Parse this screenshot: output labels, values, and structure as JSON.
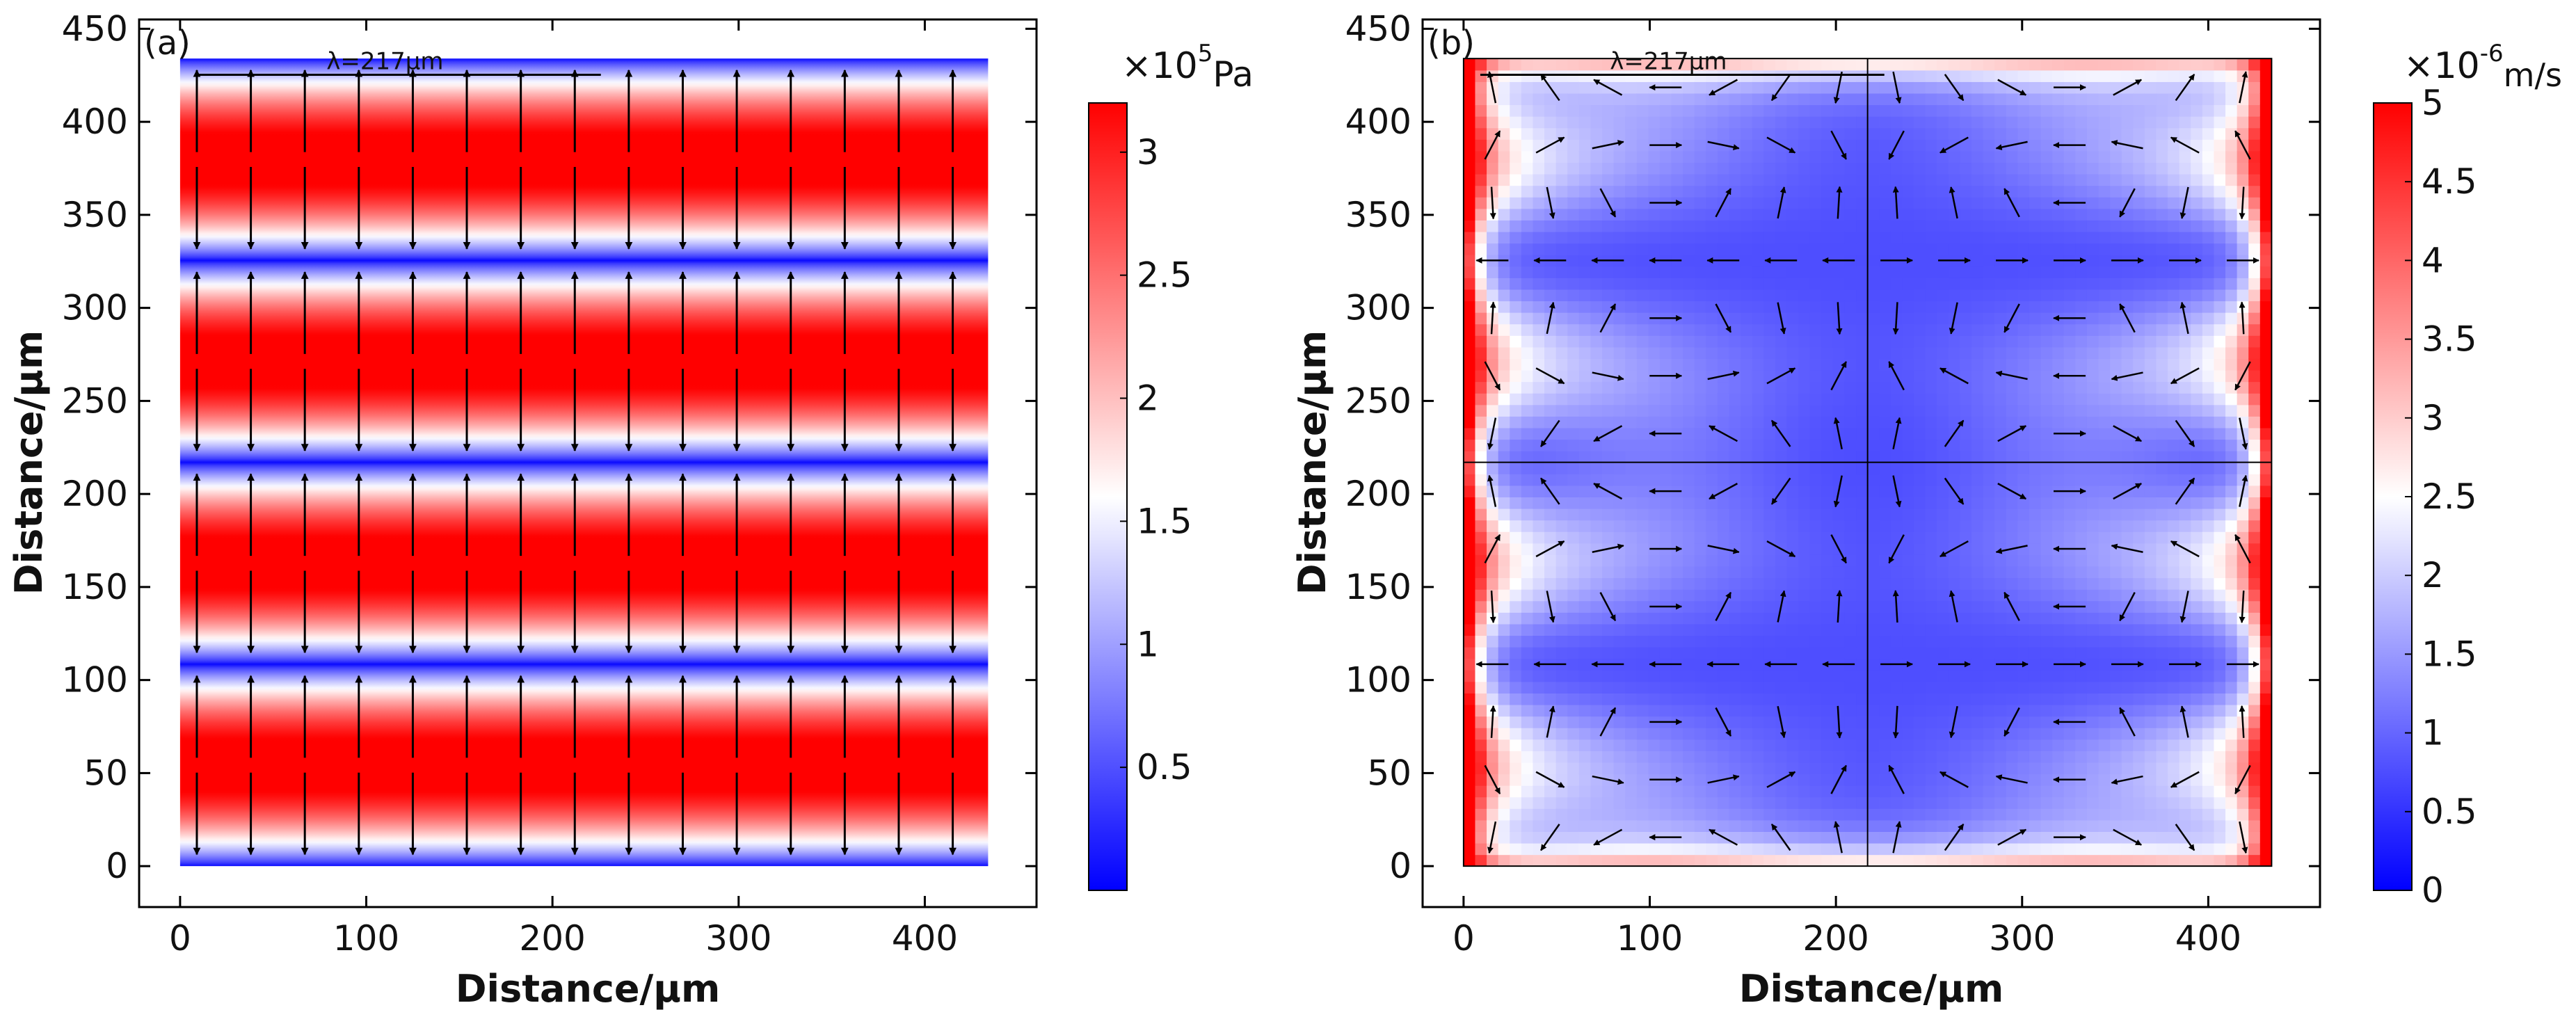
{
  "chart_data": [
    {
      "type": "heatmap",
      "panel_label": "(a)",
      "xlabel": "Distance/μm",
      "ylabel": "Distance/μm",
      "xlim": [
        -22,
        460
      ],
      "ylim": [
        -22,
        455
      ],
      "xticks": [
        0,
        100,
        200,
        300,
        400
      ],
      "yticks": [
        0,
        50,
        100,
        150,
        200,
        250,
        300,
        350,
        400,
        450
      ],
      "x_ticklabels": [
        "0",
        "100",
        "200",
        "300",
        "400"
      ],
      "y_ticklabels": [
        "0",
        "50",
        "100",
        "150",
        "200",
        "250",
        "300",
        "350",
        "400",
        "450"
      ],
      "domain": {
        "x": [
          0,
          434
        ],
        "y": [
          0,
          434
        ]
      },
      "scale_bar": {
        "label": "λ=217μm",
        "x_range": [
          9,
          226
        ],
        "y": 438
      },
      "colorbar": {
        "multiplier_base": "×10",
        "multiplier_exp": "5",
        "unit": "Pa",
        "range": [
          0,
          3.2
        ],
        "ticks": [
          0.5,
          1,
          1.5,
          2,
          2.5,
          3
        ],
        "ticklabels": [
          "0.5",
          "1",
          "1.5",
          "2",
          "2.5",
          "3"
        ],
        "colors": [
          "#0000ff",
          "#ffffff",
          "#ff0000"
        ]
      },
      "field": {
        "description_free": true,
        "pressure_nodes_y": [
          0,
          108.5,
          217,
          325.5,
          434
        ],
        "pressure_antinodes_y": [
          54.25,
          162.75,
          271.25,
          379.75
        ],
        "wavelength_um": 217
      },
      "arrows": {
        "columns_x": [
          9,
          38,
          67,
          96,
          125,
          154,
          183,
          212,
          241,
          270,
          299,
          328,
          357,
          386,
          415
        ],
        "centers_y": [
          54.25,
          162.75,
          271.25,
          379.75
        ],
        "half_length": 48,
        "gap": 4
      }
    },
    {
      "type": "heatmap",
      "panel_label": "(b)",
      "xlabel": "Distance/μm",
      "ylabel": "Distance/μm",
      "xlim": [
        -22,
        460
      ],
      "ylim": [
        -22,
        455
      ],
      "xticks": [
        0,
        100,
        200,
        300,
        400
      ],
      "yticks": [
        0,
        50,
        100,
        150,
        200,
        250,
        300,
        350,
        400,
        450
      ],
      "x_ticklabels": [
        "0",
        "100",
        "200",
        "300",
        "400"
      ],
      "y_ticklabels": [
        "0",
        "50",
        "100",
        "150",
        "200",
        "250",
        "300",
        "350",
        "400",
        "450"
      ],
      "domain": {
        "x": [
          0,
          434
        ],
        "y": [
          0,
          434
        ]
      },
      "scale_bar": {
        "label": "λ=217μm",
        "x_range": [
          9,
          226
        ],
        "y": 438
      },
      "colorbar": {
        "multiplier_base": "×10",
        "multiplier_exp": "-6",
        "unit": "m/s",
        "range": [
          0,
          5
        ],
        "ticks": [
          0,
          0.5,
          1,
          1.5,
          2,
          2.5,
          3,
          3.5,
          4,
          4.5,
          5
        ],
        "ticklabels": [
          "0",
          "0.5",
          "1",
          "1.5",
          "2",
          "2.5",
          "3",
          "3.5",
          "4",
          "4.5",
          "5"
        ],
        "colors": [
          "#0000ff",
          "#ffffff",
          "#ff0000"
        ]
      },
      "field": {
        "vortex_period_um": 108.5,
        "center_axis_x": 217,
        "center_axis_y": 217
      }
    }
  ]
}
